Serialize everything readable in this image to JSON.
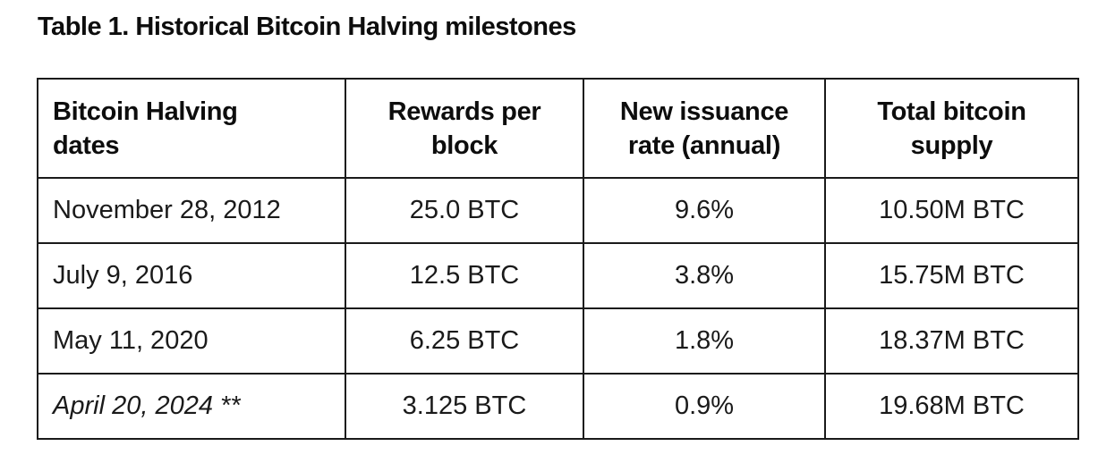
{
  "title": "Table 1. Historical Bitcoin Halving milestones",
  "table": {
    "headers": [
      "Bitcoin Halving dates",
      "Rewards per block",
      "New issuance rate (annual)",
      "Total bitcoin supply"
    ],
    "header_lines": [
      [
        "Bitcoin Halving",
        "dates"
      ],
      [
        "Rewards per",
        "block"
      ],
      [
        "New issuance",
        "rate (annual)"
      ],
      [
        "Total bitcoin",
        "supply"
      ]
    ],
    "rows": [
      {
        "date": "November 28, 2012",
        "reward": "25.0 BTC",
        "issuance": "9.6%",
        "supply": "10.50M BTC",
        "italic": false
      },
      {
        "date": "July 9, 2016",
        "reward": "12.5 BTC",
        "issuance": "3.8%",
        "supply": "15.75M BTC",
        "italic": false
      },
      {
        "date": "May 11, 2020",
        "reward": "6.25 BTC",
        "issuance": "1.8%",
        "supply": "18.37M BTC",
        "italic": false
      },
      {
        "date": "April 20, 2024 **",
        "reward": "3.125 BTC",
        "issuance": "0.9%",
        "supply": "19.68M BTC",
        "italic": true
      }
    ]
  }
}
